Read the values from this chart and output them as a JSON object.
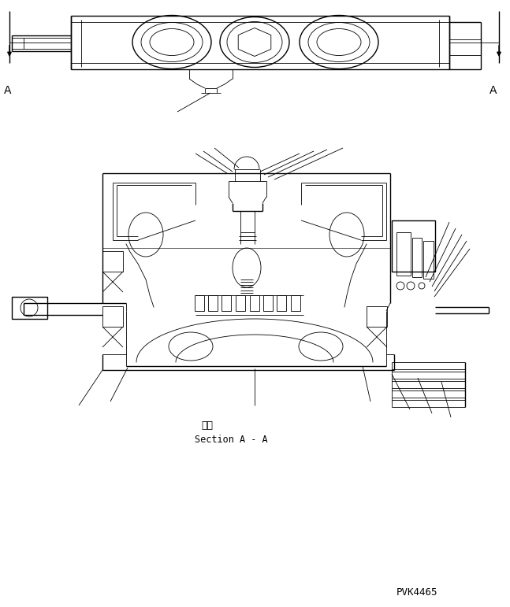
{
  "bg": "#ffffff",
  "lc": "#000000",
  "lw": 0.6,
  "lw2": 1.0,
  "fw": 6.47,
  "fh": 7.71,
  "dpi": 100,
  "sec_jp": "断面",
  "sec_en": "Section A - A",
  "pn": "PVK4465",
  "A": "A"
}
